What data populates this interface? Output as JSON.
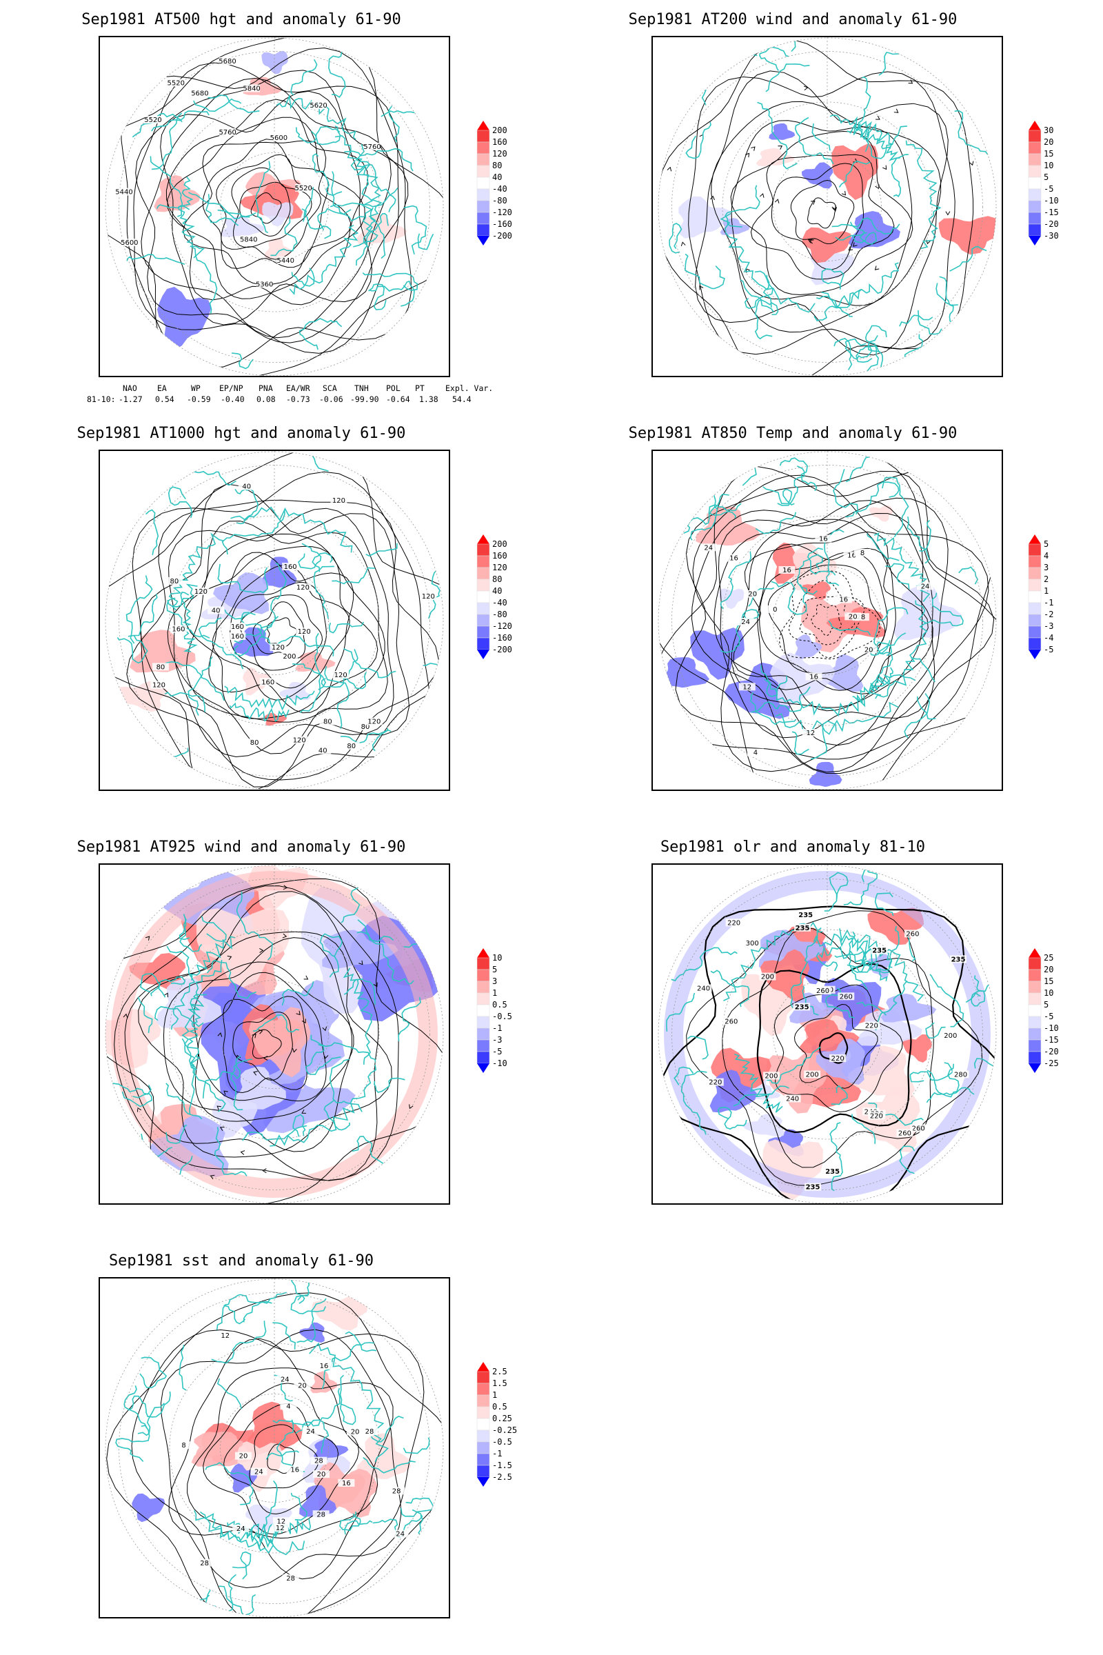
{
  "panels": [
    {
      "id": "p1",
      "title": "Sep1981 AT500 hgt and anomaly 61-90",
      "contour_labels": [
        "5840",
        "5760",
        "5680",
        "5600",
        "5520",
        "5440",
        "5520",
        "5440",
        "5360",
        "5520",
        "5600",
        "5680",
        "5760",
        "5840",
        "5620"
      ],
      "colorbar": {
        "type": "bar",
        "categories": [
          "200",
          "160",
          "120",
          "80",
          "40",
          "-40",
          "-80",
          "-120",
          "-160",
          "-200"
        ],
        "colors_top_to_bottom": [
          "#ff0000",
          "#f53c3c",
          "#ff7a7a",
          "#ffb4b4",
          "#ffe0e0",
          "#ffffff",
          "#e0e0ff",
          "#b4b4ff",
          "#7a7aff",
          "#3c3cff",
          "#0000ff"
        ]
      }
    },
    {
      "id": "p2",
      "title": "Sep1981 AT200 wind and anomaly 61-90",
      "contour_labels": [],
      "colorbar": {
        "categories": [
          "30",
          "20",
          "15",
          "10",
          "5",
          "-5",
          "-10",
          "-15",
          "-20",
          "-30"
        ],
        "colors_top_to_bottom": [
          "#ff0000",
          "#f53c3c",
          "#ff7a7a",
          "#ffb4b4",
          "#ffe0e0",
          "#ffffff",
          "#e0e0ff",
          "#b4b4ff",
          "#7a7aff",
          "#3c3cff",
          "#0000ff"
        ]
      }
    },
    {
      "id": "p3",
      "title": "Sep1981 AT1000 hgt and anomaly 61-90",
      "contour_labels": [
        "80",
        "80",
        "120",
        "160",
        "80",
        "120",
        "40",
        "120",
        "80",
        "120",
        "160",
        "120",
        "200",
        "160",
        "80",
        "40",
        "40",
        "160",
        "120",
        "160",
        "120",
        "80",
        "120",
        "120",
        "120"
      ],
      "colorbar": {
        "categories": [
          "200",
          "160",
          "120",
          "80",
          "40",
          "-40",
          "-80",
          "-120",
          "-160",
          "-200"
        ],
        "colors_top_to_bottom": [
          "#ff0000",
          "#f53c3c",
          "#ff7a7a",
          "#ffb4b4",
          "#ffe0e0",
          "#ffffff",
          "#e0e0ff",
          "#b4b4ff",
          "#7a7aff",
          "#3c3cff",
          "#0000ff"
        ]
      }
    },
    {
      "id": "p4",
      "title": "Sep1981 AT850 Temp and anomaly 61-90",
      "contour_labels": [
        "16",
        "16",
        "12",
        "4",
        "0",
        "16",
        "20",
        "24",
        "8",
        "12",
        "16",
        "20",
        "24",
        "28",
        "24",
        "20",
        "16",
        "16"
      ],
      "colorbar": {
        "categories": [
          "5",
          "4",
          "3",
          "2",
          "1",
          "-1",
          "-2",
          "-3",
          "-4",
          "-5"
        ],
        "colors_top_to_bottom": [
          "#ff0000",
          "#f53c3c",
          "#ff7a7a",
          "#ffb4b4",
          "#ffe0e0",
          "#ffffff",
          "#e0e0ff",
          "#b4b4ff",
          "#7a7aff",
          "#3c3cff",
          "#0000ff"
        ]
      }
    },
    {
      "id": "p5",
      "title": "Sep1981 AT925 wind and anomaly 61-90",
      "contour_labels": [],
      "colorbar": {
        "categories": [
          "10",
          "5",
          "3",
          "1",
          "0.5",
          "-0.5",
          "-1",
          "-3",
          "-5",
          "-10"
        ],
        "colors_top_to_bottom": [
          "#ff0000",
          "#f53c3c",
          "#ff7a7a",
          "#ffb4b4",
          "#ffe0e0",
          "#ffffff",
          "#e0e0ff",
          "#b4b4ff",
          "#7a7aff",
          "#3c3cff",
          "#0000ff"
        ]
      }
    },
    {
      "id": "p6",
      "title": "Sep1981 olr and anomaly 81-10",
      "contour_labels": [
        "260",
        "235",
        "235",
        "260",
        "220",
        "220",
        "240",
        "200",
        "240",
        "235",
        "220",
        "200",
        "235",
        "260",
        "200",
        "240",
        "220",
        "260",
        "235",
        "300",
        "260",
        "240",
        "220",
        "235",
        "280",
        "220",
        "235",
        "260",
        "200"
      ],
      "colorbar": {
        "categories": [
          "25",
          "20",
          "15",
          "10",
          "5",
          "-5",
          "-10",
          "-15",
          "-20",
          "-25"
        ],
        "colors_top_to_bottom": [
          "#ff0000",
          "#f53c3c",
          "#ff7a7a",
          "#ffb4b4",
          "#ffe0e0",
          "#ffffff",
          "#e0e0ff",
          "#b4b4ff",
          "#7a7aff",
          "#3c3cff",
          "#0000ff"
        ]
      }
    },
    {
      "id": "p7",
      "title": "Sep1981 sst and anomaly 61-90",
      "contour_labels": [
        "28",
        "24",
        "28",
        "24",
        "20",
        "16",
        "12",
        "28",
        "24",
        "20",
        "16",
        "12",
        "8",
        "4",
        "12",
        "16",
        "20",
        "24",
        "24",
        "28",
        "28",
        "20",
        "28"
      ],
      "colorbar": {
        "categories": [
          "2.5",
          "1.5",
          "1",
          "0.5",
          "0.25",
          "-0.25",
          "-0.5",
          "-1",
          "-1.5",
          "-2.5"
        ],
        "colors_top_to_bottom": [
          "#ff0000",
          "#f53c3c",
          "#ff7a7a",
          "#ffb4b4",
          "#ffe0e0",
          "#ffffff",
          "#e0e0ff",
          "#b4b4ff",
          "#7a7aff",
          "#3c3cff",
          "#0000ff"
        ]
      }
    }
  ],
  "indices": {
    "headers": [
      "NAO",
      "EA",
      "WP",
      "EP/NP",
      "PNA",
      "EA/WR",
      "SCA",
      "TNH",
      "POL",
      "PT",
      "Expl. Var."
    ],
    "row_label": "81-10:",
    "values": [
      "-1.27",
      "0.54",
      "-0.59",
      "-0.40",
      "0.08",
      "-0.73",
      "-0.06",
      "-99.90",
      "-0.64",
      "1.38",
      "54.4"
    ]
  },
  "colors": {
    "coast": "#2ec4c0",
    "contour": "#000000",
    "grid": "#999999"
  }
}
